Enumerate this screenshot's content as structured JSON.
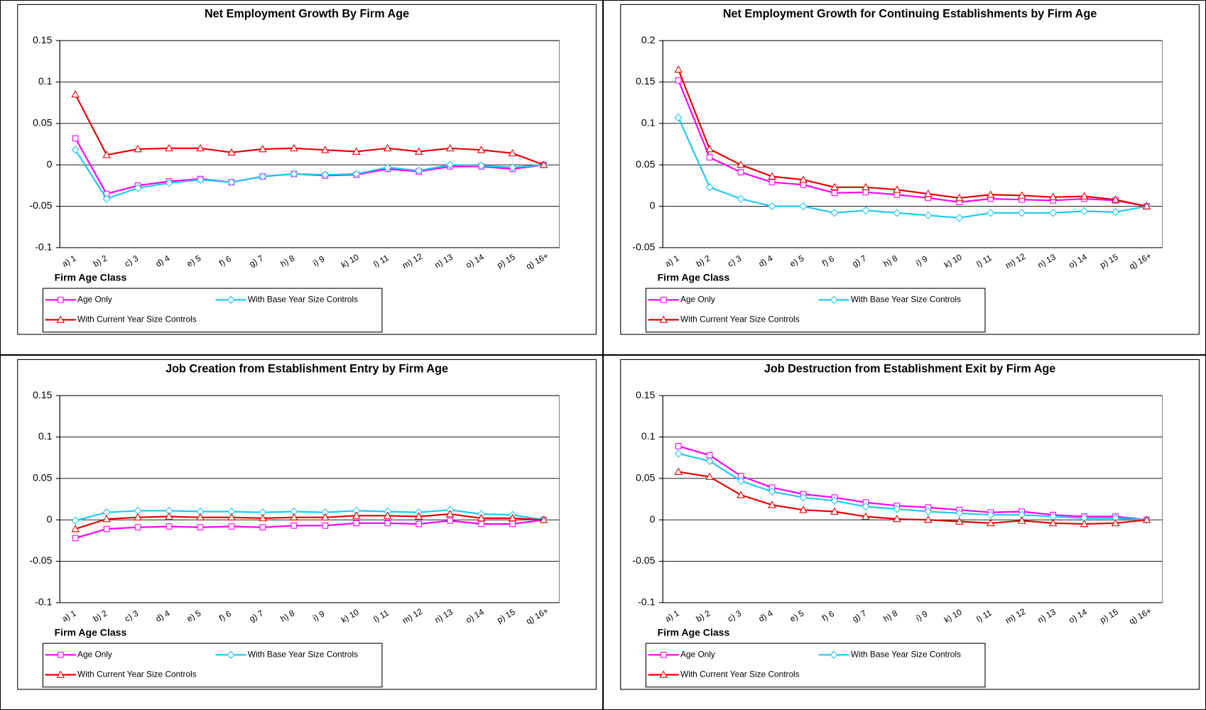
{
  "chart_data": [
    {
      "type": "line",
      "title": "Net Employment Growth By Firm Age",
      "xlabel": "Firm Age Class",
      "categories": [
        "a) 1",
        "b) 2",
        "c) 3",
        "d) 4",
        "e) 5",
        "f) 6",
        "g) 7",
        "h) 8",
        "i) 9",
        "k) 10",
        "l) 11",
        "m) 12",
        "n) 13",
        "o) 14",
        "p) 15",
        "q) 16+"
      ],
      "ylim": [
        -0.1,
        0.15
      ],
      "yticks": [
        -0.1,
        -0.05,
        0,
        0.05,
        0.1,
        0.15
      ],
      "grid": true,
      "series": [
        {
          "name": "Age Only",
          "color": "#ff00ff",
          "marker": "square",
          "values": [
            0.032,
            -0.035,
            -0.025,
            -0.02,
            -0.017,
            -0.021,
            -0.014,
            -0.011,
            -0.013,
            -0.012,
            -0.005,
            -0.008,
            -0.002,
            -0.002,
            -0.005,
            0
          ]
        },
        {
          "name": "With Base Year Size Controls",
          "color": "#1ec8f0",
          "marker": "diamond",
          "values": [
            0.018,
            -0.041,
            -0.028,
            -0.022,
            -0.018,
            -0.021,
            -0.014,
            -0.011,
            -0.012,
            -0.011,
            -0.003,
            -0.007,
            0,
            -0.001,
            -0.003,
            0
          ]
        },
        {
          "name": "With Current Year Size Controls",
          "color": "#e60000",
          "marker": "triangle",
          "values": [
            0.085,
            0.012,
            0.019,
            0.02,
            0.02,
            0.015,
            0.019,
            0.02,
            0.018,
            0.016,
            0.02,
            0.016,
            0.02,
            0.018,
            0.014,
            0
          ]
        }
      ]
    },
    {
      "type": "line",
      "title": "Net Employment Growth for Continuing Establishments by Firm Age",
      "xlabel": "Firm Age Class",
      "categories": [
        "a) 1",
        "b) 2",
        "c) 3",
        "d) 4",
        "e) 5",
        "f) 6",
        "g) 7",
        "h) 8",
        "i) 9",
        "k) 10",
        "l) 11",
        "m) 12",
        "n) 13",
        "o) 14",
        "p) 15",
        "q) 16+"
      ],
      "ylim": [
        -0.05,
        0.2
      ],
      "yticks": [
        -0.05,
        0,
        0.05,
        0.1,
        0.15,
        0.2
      ],
      "grid": true,
      "series": [
        {
          "name": "Age Only",
          "color": "#ff00ff",
          "marker": "square",
          "values": [
            0.152,
            0.059,
            0.041,
            0.029,
            0.026,
            0.016,
            0.017,
            0.014,
            0.01,
            0.005,
            0.009,
            0.008,
            0.007,
            0.009,
            0.007,
            0
          ]
        },
        {
          "name": "With Base Year Size Controls",
          "color": "#1ec8f0",
          "marker": "diamond",
          "values": [
            0.107,
            0.023,
            0.009,
            0,
            0,
            -0.008,
            -0.005,
            -0.008,
            -0.011,
            -0.014,
            -0.008,
            -0.008,
            -0.008,
            -0.006,
            -0.007,
            0
          ]
        },
        {
          "name": "With Current Year Size Controls",
          "color": "#e60000",
          "marker": "triangle",
          "values": [
            0.165,
            0.069,
            0.05,
            0.036,
            0.032,
            0.023,
            0.023,
            0.02,
            0.015,
            0.01,
            0.014,
            0.013,
            0.011,
            0.012,
            0.008,
            0
          ]
        }
      ]
    },
    {
      "type": "line",
      "title": "Job Creation from Establishment Entry by Firm Age",
      "xlabel": "Firm Age Class",
      "categories": [
        "a) 1",
        "b) 2",
        "c) 3",
        "d) 4",
        "e) 5",
        "f) 6",
        "g) 7",
        "h) 8",
        "i) 9",
        "k) 10",
        "l) 11",
        "m) 12",
        "n) 13",
        "o) 14",
        "p) 15",
        "q) 16+"
      ],
      "ylim": [
        -0.1,
        0.15
      ],
      "yticks": [
        -0.1,
        -0.05,
        0,
        0.05,
        0.1,
        0.15
      ],
      "grid": true,
      "series": [
        {
          "name": "Age Only",
          "color": "#ff00ff",
          "marker": "square",
          "values": [
            -0.022,
            -0.011,
            -0.009,
            -0.008,
            -0.009,
            -0.008,
            -0.009,
            -0.007,
            -0.007,
            -0.004,
            -0.004,
            -0.005,
            -0.001,
            -0.005,
            -0.005,
            0
          ]
        },
        {
          "name": "With Base Year Size Controls",
          "color": "#1ec8f0",
          "marker": "diamond",
          "values": [
            -0.001,
            0.009,
            0.011,
            0.011,
            0.01,
            0.01,
            0.009,
            0.01,
            0.009,
            0.011,
            0.01,
            0.009,
            0.012,
            0.007,
            0.006,
            0
          ]
        },
        {
          "name": "With Current Year Size Controls",
          "color": "#e60000",
          "marker": "triangle",
          "values": [
            -0.011,
            0.001,
            0.003,
            0.004,
            0.003,
            0.003,
            0.002,
            0.003,
            0.003,
            0.005,
            0.005,
            0.004,
            0.007,
            0.002,
            0.002,
            0
          ]
        }
      ]
    },
    {
      "type": "line",
      "title": "Job Destruction from Establishment Exit by Firm Age",
      "xlabel": "Firm Age Class",
      "categories": [
        "a) 1",
        "b) 2",
        "c) 3",
        "d) 4",
        "e) 5",
        "f) 6",
        "g) 7",
        "h) 8",
        "i) 9",
        "k) 10",
        "l) 11",
        "m) 12",
        "n) 13",
        "o) 14",
        "p) 15",
        "q) 16+"
      ],
      "ylim": [
        -0.1,
        0.15
      ],
      "yticks": [
        -0.1,
        -0.05,
        0,
        0.05,
        0.1,
        0.15
      ],
      "grid": true,
      "series": [
        {
          "name": "Age Only",
          "color": "#ff00ff",
          "marker": "square",
          "values": [
            0.089,
            0.078,
            0.053,
            0.039,
            0.031,
            0.027,
            0.021,
            0.017,
            0.015,
            0.012,
            0.009,
            0.01,
            0.006,
            0.004,
            0.004,
            0
          ]
        },
        {
          "name": "With Base Year Size Controls",
          "color": "#1ec8f0",
          "marker": "diamond",
          "values": [
            0.08,
            0.071,
            0.047,
            0.034,
            0.027,
            0.023,
            0.016,
            0.013,
            0.01,
            0.008,
            0.006,
            0.006,
            0.004,
            0.002,
            0.002,
            0
          ]
        },
        {
          "name": "With Current Year Size Controls",
          "color": "#e60000",
          "marker": "triangle",
          "values": [
            0.058,
            0.052,
            0.03,
            0.018,
            0.012,
            0.01,
            0.004,
            0.001,
            0,
            -0.002,
            -0.004,
            -0.001,
            -0.004,
            -0.005,
            -0.004,
            0
          ]
        }
      ]
    }
  ]
}
